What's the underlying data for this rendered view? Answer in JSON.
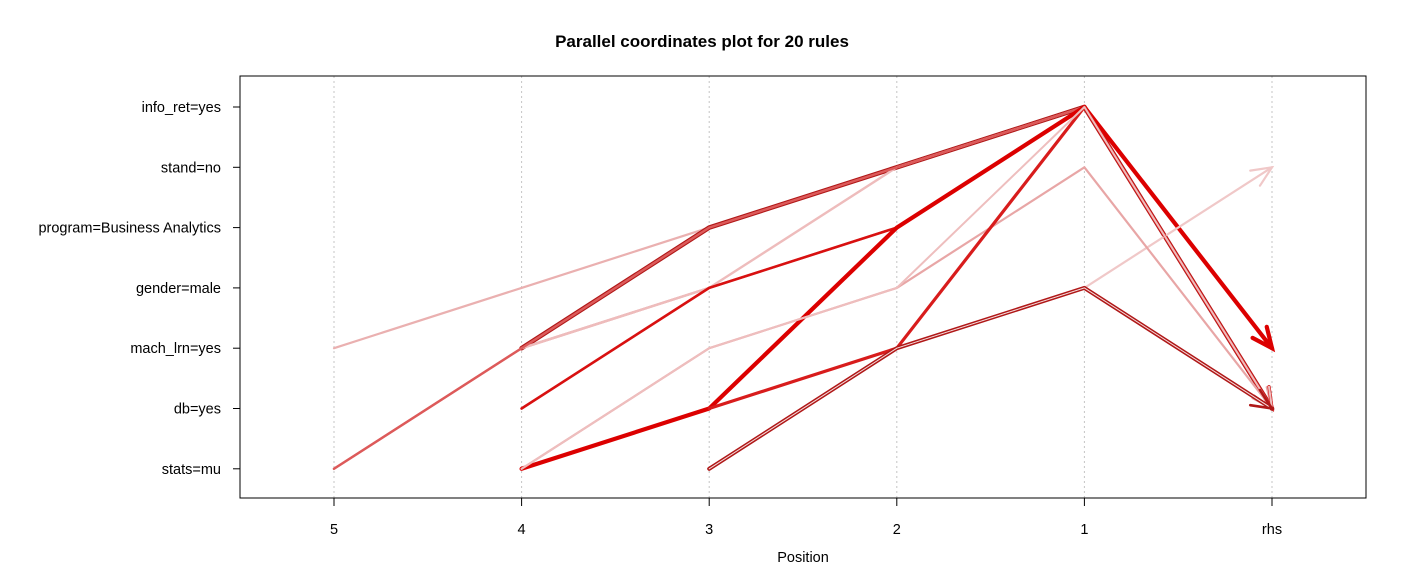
{
  "chart_data": {
    "type": "parallel-coordinates",
    "title": "Parallel coordinates plot for 20 rules",
    "xlabel": "Position",
    "x_ticks": [
      "5",
      "4",
      "3",
      "2",
      "1",
      "rhs"
    ],
    "y_items": [
      "info_ret=yes",
      "stand=no",
      "program=Business Analytics",
      "gender=male",
      "mach_lrn=yes",
      "db=yes",
      "stats=mu"
    ],
    "grid": "vertical dotted",
    "rules": [
      {
        "path": [
          "mach_lrn=yes",
          "gender=male",
          "program=Business Analytics",
          "stand=no",
          "info_ret=yes",
          "db=yes"
        ],
        "color": "#eab0b0",
        "width": 2.2
      },
      {
        "path": [
          "stats=mu",
          "mach_lrn=yes",
          "gender=male",
          "program=Business Analytics",
          "info_ret=yes",
          "db=yes"
        ],
        "color": "#e49c9c",
        "width": 2.4
      },
      {
        "path": [
          "mach_lrn=yes",
          "program=Business Analytics",
          "stand=no",
          "info_ret=yes",
          "db=yes"
        ],
        "color": "#d42a2a",
        "width": 3.2,
        "outline": true
      },
      {
        "path": [
          "mach_lrn=yes",
          "gender=male",
          "stand=no",
          "info_ret=yes",
          "db=yes"
        ],
        "color": "#eebcbc",
        "width": 2.4
      },
      {
        "path": [
          "db=yes",
          "gender=male",
          "program=Business Analytics",
          "info_ret=yes",
          "db=yes"
        ],
        "color": "#d81010",
        "width": 2.6
      },
      {
        "path": [
          "stats=mu",
          "mach_lrn=yes",
          "program=Business Analytics",
          "stand=no",
          "info_ret=yes",
          "db=yes"
        ],
        "color": "#dd5a5a",
        "width": 2.4
      },
      {
        "path": [
          "stats=mu",
          "db=yes",
          "program=Business Analytics",
          "info_ret=yes",
          "mach_lrn=yes"
        ],
        "color": "#dc0000",
        "width": 4.2
      },
      {
        "path": [
          "mach_lrn=yes",
          "gender=male",
          "stand=no"
        ],
        "color": "#f0c8c8",
        "width": 2.2
      },
      {
        "path": [
          "stats=mu",
          "mach_lrn=yes",
          "gender=male",
          "stand=no",
          "db=yes"
        ],
        "color": "#e8a6a6",
        "width": 2.2
      },
      {
        "path": [
          "db=yes",
          "mach_lrn=yes",
          "info_ret=yes",
          "db=yes"
        ],
        "color": "#d81c1c",
        "width": 3.2
      },
      {
        "path": [
          "stats=mu",
          "mach_lrn=yes",
          "gender=male",
          "info_ret=yes",
          "db=yes"
        ],
        "color": "#eebebe",
        "width": 2.0
      },
      {
        "path": [
          "stats=mu",
          "mach_lrn=yes",
          "gender=male",
          "db=yes"
        ],
        "color": "#c8202c",
        "width": 2.6,
        "outline": true
      }
    ]
  }
}
